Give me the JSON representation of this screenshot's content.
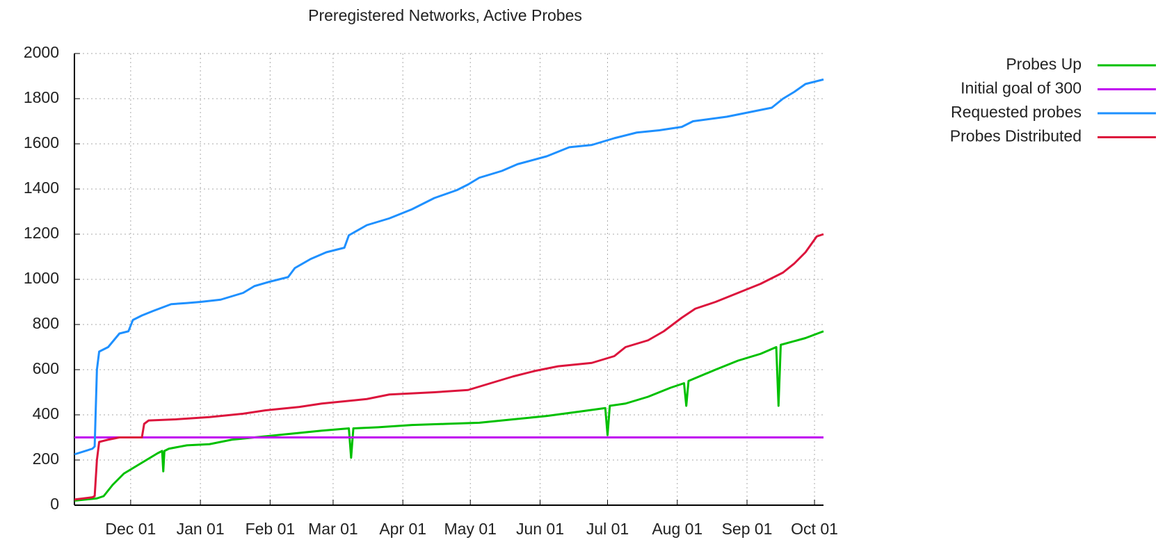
{
  "chart_data": {
    "type": "line",
    "title": "Preregistered Networks, Active Probes",
    "xlim": [
      0,
      333
    ],
    "xticks": [
      {
        "value": 25,
        "label": "Dec 01"
      },
      {
        "value": 56,
        "label": "Jan 01"
      },
      {
        "value": 87,
        "label": "Feb 01"
      },
      {
        "value": 115,
        "label": "Mar 01"
      },
      {
        "value": 146,
        "label": "Apr 01"
      },
      {
        "value": 176,
        "label": "May 01"
      },
      {
        "value": 207,
        "label": "Jun 01"
      },
      {
        "value": 237,
        "label": "Jul 01"
      },
      {
        "value": 268,
        "label": "Aug 01"
      },
      {
        "value": 299,
        "label": "Sep 01"
      },
      {
        "value": 329,
        "label": "Oct 01"
      }
    ],
    "ylim": [
      0,
      2000
    ],
    "yticks": [
      0,
      200,
      400,
      600,
      800,
      1000,
      1200,
      1400,
      1600,
      1800,
      2000
    ],
    "grid": true,
    "legend": "top-right",
    "series": [
      {
        "name": "Probes Up",
        "color": "#00c000",
        "x": [
          0,
          10,
          13,
          17,
          22,
          27,
          32,
          37,
          39,
          39.5,
          40,
          42,
          50,
          60,
          70,
          80,
          90,
          100,
          110,
          122,
          123,
          124,
          135,
          150,
          165,
          180,
          195,
          210,
          225,
          236,
          237,
          238,
          245,
          255,
          265,
          271,
          272,
          273,
          285,
          295,
          305,
          312,
          313,
          314,
          325,
          333
        ],
        "values": [
          20,
          30,
          40,
          90,
          140,
          170,
          200,
          230,
          240,
          150,
          240,
          250,
          265,
          270,
          290,
          300,
          310,
          320,
          330,
          340,
          210,
          340,
          345,
          355,
          360,
          365,
          380,
          395,
          415,
          430,
          310,
          440,
          450,
          480,
          520,
          540,
          440,
          550,
          600,
          640,
          670,
          700,
          440,
          710,
          740,
          770
        ]
      },
      {
        "name": "Initial goal of 300",
        "color": "#c000f0",
        "x": [
          0,
          333
        ],
        "values": [
          300,
          300
        ]
      },
      {
        "name": "Requested probes",
        "color": "#1e90ff",
        "x": [
          0,
          8,
          9,
          10,
          11,
          15,
          20,
          24,
          26,
          30,
          35,
          43,
          50,
          56,
          65,
          75,
          80,
          87,
          95,
          98,
          105,
          112,
          120,
          122,
          130,
          140,
          150,
          160,
          170,
          175,
          180,
          190,
          197,
          210,
          220,
          230,
          240,
          250,
          260,
          270,
          275,
          290,
          300,
          310,
          315,
          320,
          325,
          333
        ],
        "values": [
          225,
          250,
          260,
          600,
          680,
          700,
          760,
          770,
          820,
          840,
          860,
          890,
          895,
          900,
          910,
          940,
          970,
          990,
          1010,
          1050,
          1090,
          1120,
          1140,
          1195,
          1240,
          1270,
          1310,
          1360,
          1395,
          1420,
          1450,
          1480,
          1510,
          1545,
          1585,
          1595,
          1625,
          1650,
          1660,
          1675,
          1700,
          1720,
          1740,
          1760,
          1800,
          1830,
          1865,
          1885
        ]
      },
      {
        "name": "Probes Distributed",
        "color": "#dc143c",
        "x": [
          0,
          8,
          9,
          10,
          11,
          15,
          20,
          30,
          31,
          33,
          45,
          60,
          75,
          85,
          100,
          110,
          130,
          140,
          160,
          175,
          185,
          195,
          205,
          215,
          230,
          240,
          245,
          255,
          262,
          270,
          276,
          285,
          295,
          305,
          315,
          320,
          325,
          330,
          333
        ],
        "values": [
          25,
          35,
          40,
          200,
          280,
          290,
          300,
          300,
          360,
          375,
          380,
          390,
          405,
          420,
          435,
          450,
          470,
          490,
          500,
          510,
          540,
          570,
          595,
          615,
          630,
          660,
          700,
          730,
          770,
          830,
          870,
          900,
          940,
          980,
          1030,
          1070,
          1120,
          1190,
          1200
        ]
      }
    ]
  }
}
